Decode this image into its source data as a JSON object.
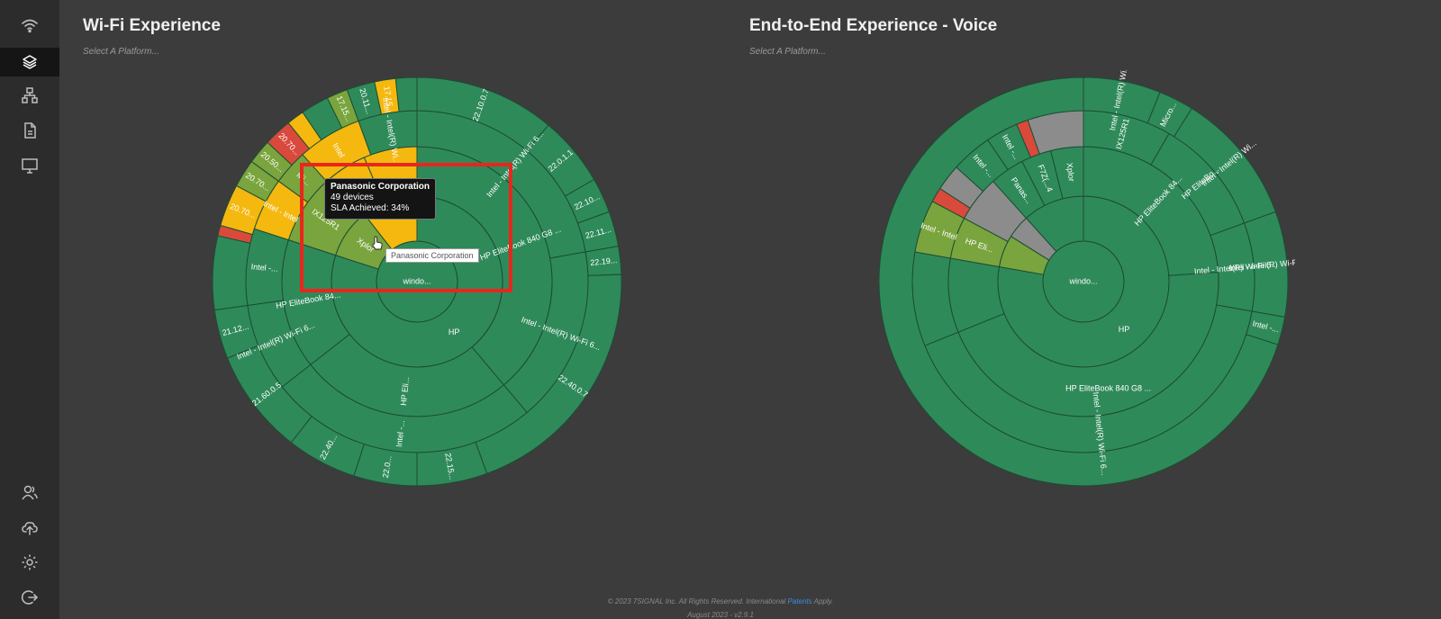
{
  "sidebar": {
    "items": [
      {
        "name": "wifi-icon",
        "active": false
      },
      {
        "name": "layers-icon",
        "active": true
      },
      {
        "name": "hierarchy-icon",
        "active": false
      },
      {
        "name": "document-icon",
        "active": false
      },
      {
        "name": "monitor-icon",
        "active": false
      },
      {
        "name": "users-icon",
        "active": false
      },
      {
        "name": "cloud-upload-icon",
        "active": false
      },
      {
        "name": "settings-icon",
        "active": false
      },
      {
        "name": "logout-icon",
        "active": false
      }
    ]
  },
  "panels": [
    {
      "title": "Wi-Fi Experience",
      "platform_placeholder": "Select A Platform..."
    },
    {
      "title": "End-to-End Experience - Voice",
      "platform_placeholder": "Select A Platform..."
    }
  ],
  "colors": {
    "green": "#2f8a5a",
    "light_green": "#7aa43d",
    "yellow": "#f5b80f",
    "red": "#d94a3c",
    "gray": "#8c8c8c",
    "orange": "#f08a1c"
  },
  "tooltip": {
    "title": "Panasonic Corporation",
    "devices": "49 devices",
    "sla": "SLA Achieved: 34%"
  },
  "hover_label": "Panasonic Corporation",
  "footer": {
    "copyright": "© 2023 7SIGNAL Inc. All Rights Reserved. International",
    "link": "Patents",
    "apply": "Apply.",
    "version": "August 2023 - v2.9.1"
  },
  "chart_data": [
    {
      "type": "sunburst",
      "title": "Wi-Fi Experience",
      "segments": [
        {
          "ring": 0,
          "start": 0,
          "end": 360,
          "color": "green",
          "label": "windo..."
        },
        {
          "ring": 1,
          "start": 0,
          "end": 288,
          "color": "green",
          "label": "HP"
        },
        {
          "ring": 1,
          "start": 288,
          "end": 322,
          "color": "light_green",
          "label": "Xplor"
        },
        {
          "ring": 1,
          "start": 322,
          "end": 360,
          "color": "yellow",
          "label": ""
        },
        {
          "ring": 2,
          "start": 0,
          "end": 140,
          "color": "green",
          "label": "HP EliteBook 840 G8 ..."
        },
        {
          "ring": 2,
          "start": 140,
          "end": 232,
          "color": "green",
          "label": "HP Eli..."
        },
        {
          "ring": 2,
          "start": 232,
          "end": 288,
          "color": "green",
          "label": "HP EliteBook 84..."
        },
        {
          "ring": 2,
          "start": 288,
          "end": 320,
          "color": "light_green",
          "label": "IX125R1"
        },
        {
          "ring": 2,
          "start": 320,
          "end": 337,
          "color": "yellow",
          "label": "Intel"
        },
        {
          "ring": 2,
          "start": 337,
          "end": 360,
          "color": "yellow",
          "label": ""
        },
        {
          "ring": 3,
          "start": 0,
          "end": 80,
          "color": "green",
          "label": "Intel - Intel(R) Wi-Fi 6..."
        },
        {
          "ring": 3,
          "start": 80,
          "end": 140,
          "color": "green",
          "label": "Intel - Intel(R) Wi-Fi 6..."
        },
        {
          "ring": 3,
          "start": 140,
          "end": 232,
          "color": "green",
          "label": "Intel -..."
        },
        {
          "ring": 3,
          "start": 232,
          "end": 262,
          "color": "green",
          "label": "Intel - Intel(R) Wi-Fi 6..."
        },
        {
          "ring": 3,
          "start": 262,
          "end": 288,
          "color": "green",
          "label": "Intel -..."
        },
        {
          "ring": 3,
          "start": 288,
          "end": 306,
          "color": "yellow",
          "label": "Intel - Intel"
        },
        {
          "ring": 3,
          "start": 306,
          "end": 318,
          "color": "light_green",
          "label": "Mi..."
        },
        {
          "ring": 3,
          "start": 318,
          "end": 340,
          "color": "yellow",
          "label": "Intel"
        },
        {
          "ring": 3,
          "start": 340,
          "end": 360,
          "color": "green",
          "label": "Intel - Intel(R) Wi..."
        },
        {
          "ring": 4,
          "start": 0,
          "end": 40,
          "color": "green",
          "label": "22.10.0.7"
        },
        {
          "ring": 4,
          "start": 40,
          "end": 60,
          "color": "green",
          "label": "22.0.1.1"
        },
        {
          "ring": 4,
          "start": 60,
          "end": 70,
          "color": "green",
          "label": "22.10..."
        },
        {
          "ring": 4,
          "start": 70,
          "end": 80,
          "color": "green",
          "label": "22.11..."
        },
        {
          "ring": 4,
          "start": 80,
          "end": 88,
          "color": "green",
          "label": "22.19..."
        },
        {
          "ring": 4,
          "start": 88,
          "end": 160,
          "color": "green",
          "label": "22.40.0.7"
        },
        {
          "ring": 4,
          "start": 160,
          "end": 180,
          "color": "green",
          "label": "22.15..."
        },
        {
          "ring": 4,
          "start": 180,
          "end": 198,
          "color": "green",
          "label": "22.0..."
        },
        {
          "ring": 4,
          "start": 198,
          "end": 218,
          "color": "green",
          "label": "22.40..."
        },
        {
          "ring": 4,
          "start": 218,
          "end": 248,
          "color": "green",
          "label": "21.60.0.5"
        },
        {
          "ring": 4,
          "start": 248,
          "end": 262,
          "color": "green",
          "label": "21.12..."
        },
        {
          "ring": 4,
          "start": 262,
          "end": 283,
          "color": "green",
          "label": ""
        },
        {
          "ring": 4,
          "start": 283,
          "end": 286,
          "color": "red",
          "label": ""
        },
        {
          "ring": 4,
          "start": 286,
          "end": 298,
          "color": "yellow",
          "label": "20.70..."
        },
        {
          "ring": 4,
          "start": 298,
          "end": 306,
          "color": "light_green",
          "label": "20.70..."
        },
        {
          "ring": 4,
          "start": 306,
          "end": 313,
          "color": "light_green",
          "label": "20.50..."
        },
        {
          "ring": 4,
          "start": 313,
          "end": 321,
          "color": "red",
          "label": "20.70..."
        },
        {
          "ring": 4,
          "start": 321,
          "end": 326,
          "color": "yellow",
          "label": ""
        },
        {
          "ring": 4,
          "start": 326,
          "end": 334,
          "color": "green",
          "label": ""
        },
        {
          "ring": 4,
          "start": 334,
          "end": 340,
          "color": "light_green",
          "label": "17.15..."
        },
        {
          "ring": 4,
          "start": 340,
          "end": 348,
          "color": "green",
          "label": "20.11..."
        },
        {
          "ring": 4,
          "start": 348,
          "end": 354,
          "color": "yellow",
          "label": "17.15"
        },
        {
          "ring": 4,
          "start": 354,
          "end": 360,
          "color": "green",
          "label": ""
        }
      ]
    },
    {
      "type": "sunburst",
      "title": "End-to-End Experience - Voice",
      "segments": [
        {
          "ring": 0,
          "start": 0,
          "end": 360,
          "color": "green",
          "label": "windo..."
        },
        {
          "ring": 1,
          "start": 0,
          "end": 280,
          "color": "green",
          "label": "HP"
        },
        {
          "ring": 1,
          "start": 280,
          "end": 302,
          "color": "light_green",
          "label": ""
        },
        {
          "ring": 1,
          "start": 302,
          "end": 318,
          "color": "gray",
          "label": ""
        },
        {
          "ring": 1,
          "start": 318,
          "end": 360,
          "color": "green",
          "label": ""
        },
        {
          "ring": 2,
          "start": 0,
          "end": 86,
          "color": "green",
          "label": "HP EliteBook 84..."
        },
        {
          "ring": 2,
          "start": 86,
          "end": 248,
          "color": "green",
          "label": "HP EliteBook 840 G8 ..."
        },
        {
          "ring": 2,
          "start": 248,
          "end": 280,
          "color": "green",
          "label": ""
        },
        {
          "ring": 2,
          "start": 280,
          "end": 298,
          "color": "light_green",
          "label": "HP Eli..."
        },
        {
          "ring": 2,
          "start": 298,
          "end": 318,
          "color": "gray",
          "label": ""
        },
        {
          "ring": 2,
          "start": 318,
          "end": 333,
          "color": "green",
          "label": "Panas..."
        },
        {
          "ring": 2,
          "start": 333,
          "end": 346,
          "color": "green",
          "label": "F7Z(...4"
        },
        {
          "ring": 2,
          "start": 346,
          "end": 360,
          "color": "green",
          "label": "Xplor"
        },
        {
          "ring": 3,
          "start": 0,
          "end": 30,
          "color": "green",
          "label": "IX125R1"
        },
        {
          "ring": 3,
          "start": 30,
          "end": 70,
          "color": "green",
          "label": "HP EliteBo..."
        },
        {
          "ring": 3,
          "start": 70,
          "end": 100,
          "color": "green",
          "label": "Intel - Intel(R) Wi-Fi 6..."
        },
        {
          "ring": 3,
          "start": 100,
          "end": 248,
          "color": "green",
          "label": "Intel - Intel(R) Wi-Fi 6..."
        },
        {
          "ring": 3,
          "start": 248,
          "end": 280,
          "color": "green",
          "label": ""
        },
        {
          "ring": 3,
          "start": 280,
          "end": 298,
          "color": "light_green",
          "label": "Intel - Intel"
        },
        {
          "ring": 3,
          "start": 298,
          "end": 303,
          "color": "red",
          "label": ""
        },
        {
          "ring": 3,
          "start": 303,
          "end": 312,
          "color": "gray",
          "label": ""
        },
        {
          "ring": 3,
          "start": 312,
          "end": 326,
          "color": "green",
          "label": "Intel -..."
        },
        {
          "ring": 3,
          "start": 326,
          "end": 337,
          "color": "green",
          "label": "Intel -..."
        },
        {
          "ring": 3,
          "start": 337,
          "end": 341,
          "color": "red",
          "label": ""
        },
        {
          "ring": 3,
          "start": 341,
          "end": 360,
          "color": "gray",
          "label": ""
        },
        {
          "ring": 3,
          "start": 360,
          "end": 360,
          "color": "green",
          "label": ""
        },
        {
          "ring": 4,
          "start": 0,
          "end": 22,
          "color": "green",
          "label": "Intel - Intel(R) Wi..."
        },
        {
          "ring": 4,
          "start": 22,
          "end": 32,
          "color": "green",
          "label": "Micro..."
        },
        {
          "ring": 4,
          "start": 32,
          "end": 70,
          "color": "green",
          "label": "Intel - Intel(R) Wi..."
        },
        {
          "ring": 4,
          "start": 70,
          "end": 100,
          "color": "green",
          "label": "Intel - Intel(R) Wi-Fi 6..."
        },
        {
          "ring": 4,
          "start": 100,
          "end": 108,
          "color": "green",
          "label": "Intel -..."
        },
        {
          "ring": 4,
          "start": 108,
          "end": 360,
          "color": "green",
          "label": ""
        }
      ]
    }
  ]
}
